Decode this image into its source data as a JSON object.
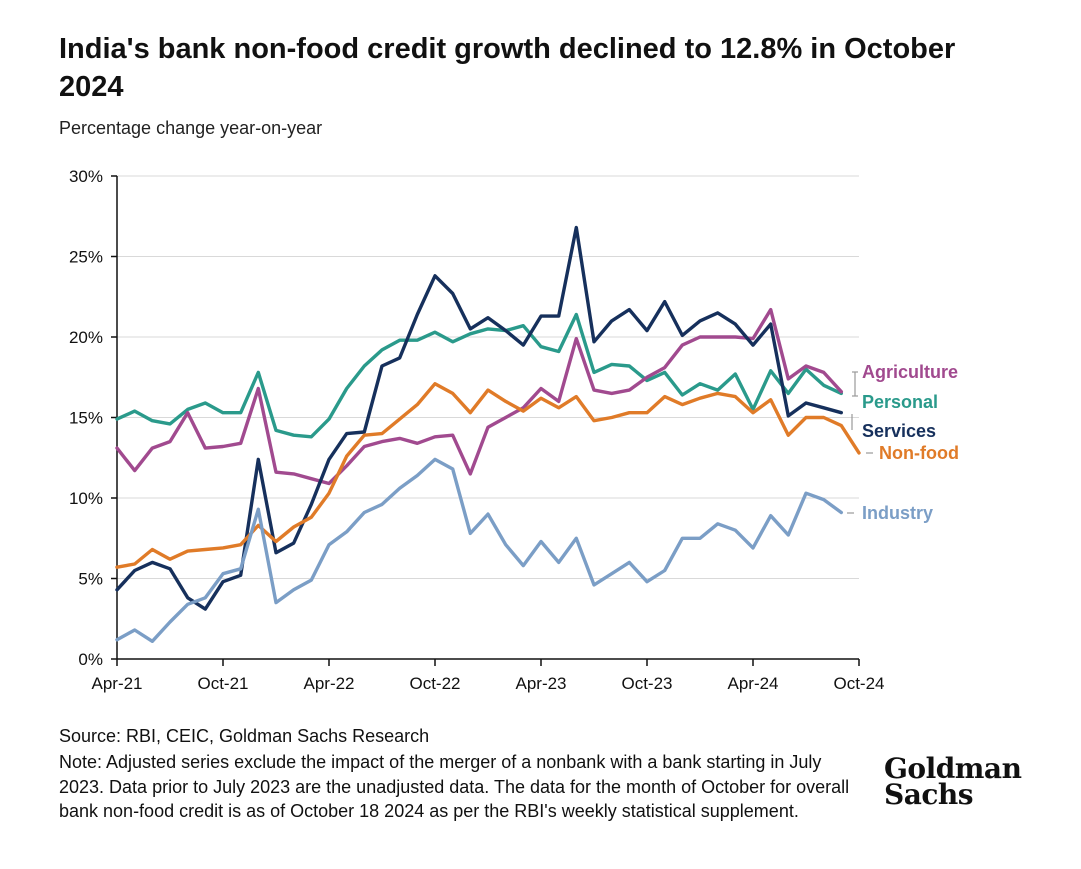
{
  "title": "India's bank non-food credit growth declined to 12.8% in October 2024",
  "subtitle": "Percentage change year-on-year",
  "source": "Source: RBI, CEIC, Goldman Sachs Research",
  "note": "Note: Adjusted series exclude the impact of the merger of a nonbank with a bank starting in July 2023. Data prior to July 2023 are the unadjusted data. The data for the month of October for overall bank non-food credit is as of October 18 2024 as per the RBI's weekly statistical supplement.",
  "logo": {
    "line1": "Goldman",
    "line2": "Sachs"
  },
  "chart_data": {
    "type": "line",
    "title": "India's bank non-food credit growth declined to 12.8% in October 2024",
    "ylabel": "Percentage change year-on-year",
    "xlabel": "",
    "ylim": [
      0,
      30
    ],
    "yticks": [
      0,
      5,
      10,
      15,
      20,
      25,
      30
    ],
    "ytick_labels": [
      "0%",
      "5%",
      "10%",
      "15%",
      "20%",
      "25%",
      "30%"
    ],
    "x_start": "Apr-21",
    "x_end": "Oct-24",
    "xticks": [
      0,
      6,
      12,
      18,
      24,
      30,
      36,
      42
    ],
    "xtick_labels": [
      "Apr-21",
      "Oct-21",
      "Apr-22",
      "Oct-22",
      "Apr-23",
      "Oct-23",
      "Apr-24",
      "Oct-24"
    ],
    "grid": "horizontal",
    "series": [
      {
        "name": "Personal",
        "label": "Personal",
        "color": "#2a9a8b",
        "values": [
          14.9,
          15.4,
          14.8,
          14.6,
          15.5,
          15.9,
          15.3,
          15.3,
          17.8,
          14.2,
          13.9,
          13.8,
          14.9,
          16.8,
          18.2,
          19.2,
          19.8,
          19.8,
          20.3,
          19.7,
          20.2,
          20.5,
          20.4,
          20.7,
          19.4,
          19.1,
          21.4,
          17.8,
          18.3,
          18.2,
          17.3,
          17.8,
          16.4,
          17.1,
          16.7,
          17.7,
          15.5,
          17.9,
          16.5,
          18.0,
          17.0,
          16.5
        ]
      },
      {
        "name": "Agriculture",
        "label": "Agriculture",
        "color": "#a14a8f",
        "values": [
          13.1,
          11.7,
          13.1,
          13.5,
          15.3,
          13.1,
          13.2,
          13.4,
          16.8,
          11.6,
          11.5,
          11.2,
          10.9,
          12.0,
          13.2,
          13.5,
          13.7,
          13.4,
          13.8,
          13.9,
          11.5,
          14.4,
          15.0,
          15.6,
          16.8,
          16.0,
          19.9,
          16.7,
          16.5,
          16.7,
          17.5,
          18.1,
          19.5,
          20.0,
          20.0,
          20.0,
          19.9,
          21.7,
          17.4,
          18.2,
          17.8,
          16.6
        ]
      },
      {
        "name": "Services",
        "label": "Services",
        "color": "#16305c",
        "values": [
          4.3,
          5.5,
          6.0,
          5.6,
          3.8,
          3.1,
          4.8,
          5.2,
          12.4,
          6.6,
          7.2,
          9.6,
          12.4,
          14.0,
          14.1,
          18.2,
          18.7,
          21.4,
          23.8,
          22.7,
          20.5,
          21.2,
          20.4,
          19.5,
          21.3,
          21.3,
          26.8,
          19.7,
          21.0,
          21.7,
          20.4,
          22.2,
          20.1,
          21.0,
          21.5,
          20.8,
          19.5,
          20.8,
          15.1,
          15.9,
          15.6,
          15.3
        ]
      },
      {
        "name": "Non-food",
        "label": "Non-food",
        "color": "#e07b28",
        "values": [
          5.7,
          5.9,
          6.8,
          6.2,
          6.7,
          6.8,
          6.9,
          7.1,
          8.3,
          7.3,
          8.2,
          8.8,
          10.3,
          12.6,
          13.9,
          14.0,
          14.9,
          15.8,
          17.1,
          16.5,
          15.3,
          16.7,
          16.0,
          15.4,
          16.2,
          15.6,
          16.3,
          14.8,
          15.0,
          15.3,
          15.3,
          16.3,
          15.8,
          16.2,
          16.5,
          16.3,
          15.3,
          16.1,
          13.9,
          15.0,
          15.0,
          14.5,
          12.8
        ]
      },
      {
        "name": "Industry",
        "label": "Industry",
        "color": "#7b9ec6",
        "values": [
          1.2,
          1.8,
          1.1,
          2.3,
          3.4,
          3.8,
          5.3,
          5.6,
          9.3,
          3.5,
          4.3,
          4.9,
          7.1,
          7.9,
          9.1,
          9.6,
          10.6,
          11.4,
          12.4,
          11.8,
          7.8,
          9.0,
          7.1,
          5.8,
          7.3,
          6.0,
          7.5,
          4.6,
          5.3,
          6.0,
          4.8,
          5.5,
          7.5,
          7.5,
          8.4,
          8.0,
          6.9,
          8.9,
          7.7,
          10.3,
          9.9,
          9.1
        ]
      }
    ]
  }
}
